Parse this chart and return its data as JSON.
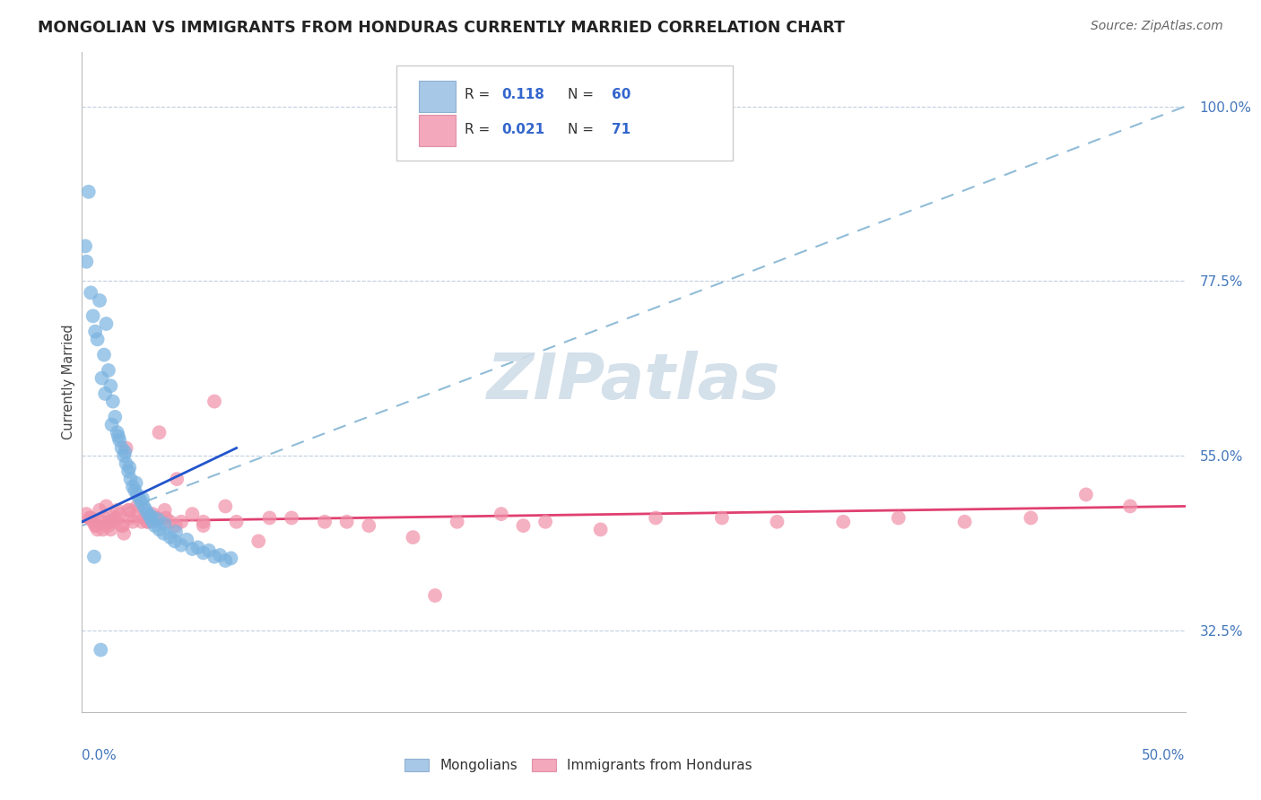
{
  "title": "MONGOLIAN VS IMMIGRANTS FROM HONDURAS CURRENTLY MARRIED CORRELATION CHART",
  "source": "Source: ZipAtlas.com",
  "ylabel": "Currently Married",
  "y_ticks": [
    32.5,
    55.0,
    77.5,
    100.0
  ],
  "x_range": [
    0.0,
    50.0
  ],
  "y_range": [
    22.0,
    107.0
  ],
  "mongolian_color": "#7ab3e0",
  "honduras_color": "#f090a8",
  "trend_blue_dashed_color": "#90bcd8",
  "trend_blue_solid_color": "#2255cc",
  "trend_pink_color": "#e04070",
  "watermark_color": "#d0dde8",
  "legend_R1": "R = ",
  "legend_R1_val": "0.118",
  "legend_N1": "N = ",
  "legend_N1_val": "60",
  "legend_R2": "R = ",
  "legend_R2_val": "0.021",
  "legend_N2": "N = ",
  "legend_N2_val": "71",
  "mongolian_x": [
    0.3,
    0.5,
    0.7,
    0.8,
    1.0,
    1.1,
    1.2,
    1.3,
    1.4,
    1.5,
    1.6,
    1.7,
    1.8,
    1.9,
    2.0,
    2.1,
    2.2,
    2.3,
    2.4,
    2.5,
    2.6,
    2.7,
    2.8,
    2.9,
    3.0,
    3.1,
    3.2,
    3.3,
    3.5,
    3.7,
    4.0,
    4.2,
    4.5,
    5.0,
    5.5,
    6.0,
    6.5,
    0.2,
    0.4,
    0.6,
    0.9,
    1.05,
    1.35,
    1.65,
    1.95,
    2.15,
    2.45,
    2.75,
    3.15,
    3.45,
    3.75,
    4.25,
    4.75,
    5.25,
    5.75,
    6.25,
    6.75,
    0.15,
    0.55,
    0.85
  ],
  "mongolian_y": [
    89.0,
    73.0,
    70.0,
    75.0,
    68.0,
    72.0,
    66.0,
    64.0,
    62.0,
    60.0,
    58.0,
    57.0,
    56.0,
    55.0,
    54.0,
    53.0,
    52.0,
    51.0,
    50.5,
    50.0,
    49.5,
    49.0,
    48.5,
    48.0,
    47.5,
    47.0,
    46.5,
    46.0,
    45.5,
    45.0,
    44.5,
    44.0,
    43.5,
    43.0,
    42.5,
    42.0,
    41.5,
    80.0,
    76.0,
    71.0,
    65.0,
    63.0,
    59.0,
    57.5,
    55.5,
    53.5,
    51.5,
    49.5,
    47.2,
    46.8,
    46.2,
    45.2,
    44.2,
    43.2,
    42.8,
    42.2,
    41.8,
    82.0,
    42.0,
    30.0
  ],
  "honduras_x": [
    0.2,
    0.4,
    0.5,
    0.6,
    0.7,
    0.8,
    0.9,
    1.0,
    1.1,
    1.2,
    1.3,
    1.4,
    1.5,
    1.6,
    1.7,
    1.8,
    1.9,
    2.0,
    2.1,
    2.2,
    2.3,
    2.5,
    2.7,
    2.8,
    3.0,
    3.2,
    3.5,
    3.8,
    4.0,
    4.3,
    4.5,
    5.0,
    5.5,
    6.0,
    7.0,
    8.0,
    9.5,
    11.0,
    13.0,
    15.0,
    17.0,
    19.0,
    21.0,
    23.5,
    26.0,
    29.0,
    31.5,
    34.5,
    37.0,
    40.0,
    43.0,
    45.5,
    47.5,
    0.35,
    0.65,
    0.95,
    1.25,
    1.55,
    1.85,
    2.15,
    2.55,
    2.95,
    3.35,
    3.75,
    4.25,
    5.5,
    6.5,
    8.5,
    12.0,
    16.0,
    20.0
  ],
  "honduras_y": [
    47.5,
    47.0,
    46.5,
    46.0,
    45.5,
    48.0,
    46.5,
    47.0,
    48.5,
    46.0,
    45.5,
    47.0,
    46.5,
    48.0,
    47.5,
    46.0,
    45.0,
    56.0,
    48.0,
    47.0,
    46.5,
    48.5,
    46.5,
    47.0,
    46.5,
    47.5,
    58.0,
    47.0,
    46.5,
    52.0,
    46.5,
    47.5,
    46.5,
    62.0,
    46.5,
    44.0,
    47.0,
    46.5,
    46.0,
    44.5,
    46.5,
    47.5,
    46.5,
    45.5,
    47.0,
    47.0,
    46.5,
    46.5,
    47.0,
    46.5,
    47.0,
    50.0,
    48.5,
    47.0,
    46.0,
    45.5,
    46.5,
    47.0,
    46.0,
    48.0,
    47.5,
    46.5,
    47.0,
    48.0,
    46.0,
    46.0,
    48.5,
    47.0,
    46.5,
    37.0,
    46.0
  ],
  "blue_dashed_x0": 0.0,
  "blue_dashed_y0": 46.0,
  "blue_dashed_x1": 50.0,
  "blue_dashed_y1": 100.0,
  "blue_solid_x0": 0.0,
  "blue_solid_y0": 46.5,
  "blue_solid_x1": 7.0,
  "blue_solid_y1": 56.0,
  "pink_x0": 0.0,
  "pink_y0": 46.5,
  "pink_x1": 50.0,
  "pink_y1": 48.5
}
